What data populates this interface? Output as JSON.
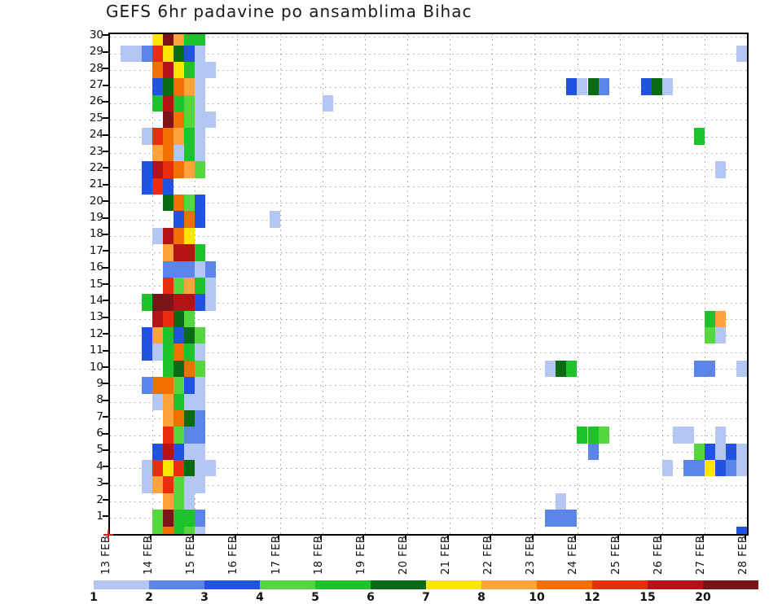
{
  "title": "GEFS 6hr padavine po ansamblima Bihac",
  "chart_data": {
    "type": "heatmap",
    "title": "GEFS 6hr padavine po ansamblima Bihac",
    "xlabel": "",
    "ylabel": "",
    "x_axis": {
      "day_labels": [
        "13 FEB",
        "14 FEB",
        "15 FEB",
        "16 FEB",
        "17 FEB",
        "18 FEB",
        "19 FEB",
        "20 FEB",
        "21 FEB",
        "22 FEB",
        "23 FEB",
        "24 FEB",
        "25 FEB",
        "26 FEB",
        "27 FEB",
        "28 FEB"
      ],
      "slots_per_day": 4,
      "slot_hours": 6
    },
    "y_axis": {
      "min_member": 1,
      "max_member": 30,
      "tick_labels": [
        "30",
        "29",
        "28",
        "27",
        "26",
        "25",
        "24",
        "23",
        "22",
        "21",
        "20",
        "19",
        "18",
        "17",
        "16",
        "15",
        "14",
        "13",
        "12",
        "11",
        "10",
        "9",
        "8",
        "7",
        "6",
        "5",
        "4",
        "3",
        "2",
        "1"
      ]
    },
    "legend": {
      "position": "bottom",
      "boundary_labels": [
        "1",
        "2",
        "3",
        "4",
        "5",
        "6",
        "7",
        "8",
        "10",
        "12",
        "15",
        "20"
      ],
      "colors": [
        "#b4c7f2",
        "#5c85ea",
        "#2152e0",
        "#55d83e",
        "#1ec32b",
        "#0b6b14",
        "#ffe600",
        "#ffa43c",
        "#f17100",
        "#e92e0d",
        "#b51218",
        "#7a1418"
      ]
    },
    "grid": true,
    "cells": [
      [
        30,
        4,
        7
      ],
      [
        30,
        5,
        12
      ],
      [
        30,
        6,
        8
      ],
      [
        30,
        7,
        5
      ],
      [
        30,
        8,
        5
      ],
      [
        29,
        1,
        1
      ],
      [
        29,
        2,
        1
      ],
      [
        29,
        3,
        2
      ],
      [
        29,
        4,
        10
      ],
      [
        29,
        5,
        7
      ],
      [
        29,
        6,
        6
      ],
      [
        29,
        7,
        3
      ],
      [
        29,
        8,
        1
      ],
      [
        29,
        59,
        1
      ],
      [
        28,
        4,
        9
      ],
      [
        28,
        5,
        11
      ],
      [
        28,
        6,
        7
      ],
      [
        28,
        7,
        5
      ],
      [
        28,
        8,
        1
      ],
      [
        28,
        9,
        1
      ],
      [
        27,
        4,
        3
      ],
      [
        27,
        5,
        6
      ],
      [
        27,
        6,
        9
      ],
      [
        27,
        7,
        8
      ],
      [
        27,
        8,
        1
      ],
      [
        27,
        43,
        3
      ],
      [
        27,
        44,
        1
      ],
      [
        27,
        45,
        6
      ],
      [
        27,
        46,
        2
      ],
      [
        27,
        50,
        3
      ],
      [
        27,
        51,
        6
      ],
      [
        27,
        52,
        1
      ],
      [
        26,
        4,
        5
      ],
      [
        26,
        5,
        11
      ],
      [
        26,
        6,
        5
      ],
      [
        26,
        7,
        4
      ],
      [
        26,
        8,
        1
      ],
      [
        26,
        20,
        1
      ],
      [
        25,
        5,
        12
      ],
      [
        25,
        6,
        9
      ],
      [
        25,
        7,
        4
      ],
      [
        25,
        8,
        1
      ],
      [
        25,
        9,
        1
      ],
      [
        24,
        3,
        1
      ],
      [
        24,
        4,
        10
      ],
      [
        24,
        5,
        9
      ],
      [
        24,
        6,
        8
      ],
      [
        24,
        7,
        5
      ],
      [
        24,
        8,
        1
      ],
      [
        24,
        55,
        5
      ],
      [
        23,
        4,
        8
      ],
      [
        23,
        5,
        9
      ],
      [
        23,
        6,
        1
      ],
      [
        23,
        7,
        5
      ],
      [
        23,
        8,
        1
      ],
      [
        22,
        3,
        3
      ],
      [
        22,
        4,
        11
      ],
      [
        22,
        5,
        10
      ],
      [
        22,
        6,
        9
      ],
      [
        22,
        7,
        8
      ],
      [
        22,
        8,
        4
      ],
      [
        22,
        57,
        1
      ],
      [
        21,
        3,
        3
      ],
      [
        21,
        4,
        10
      ],
      [
        21,
        5,
        3
      ],
      [
        20,
        5,
        6
      ],
      [
        20,
        6,
        9
      ],
      [
        20,
        7,
        4
      ],
      [
        20,
        8,
        3
      ],
      [
        19,
        6,
        3
      ],
      [
        19,
        7,
        9
      ],
      [
        19,
        8,
        3
      ],
      [
        19,
        15,
        1
      ],
      [
        18,
        4,
        1
      ],
      [
        18,
        5,
        11
      ],
      [
        18,
        6,
        9
      ],
      [
        18,
        7,
        7
      ],
      [
        17,
        5,
        8
      ],
      [
        17,
        6,
        11
      ],
      [
        17,
        7,
        11
      ],
      [
        17,
        8,
        5
      ],
      [
        16,
        5,
        2
      ],
      [
        16,
        6,
        2
      ],
      [
        16,
        7,
        2
      ],
      [
        16,
        8,
        1
      ],
      [
        16,
        9,
        2
      ],
      [
        15,
        5,
        10
      ],
      [
        15,
        6,
        4
      ],
      [
        15,
        7,
        8
      ],
      [
        15,
        8,
        5
      ],
      [
        15,
        9,
        1
      ],
      [
        14,
        3,
        5
      ],
      [
        14,
        4,
        12
      ],
      [
        14,
        5,
        12
      ],
      [
        14,
        6,
        11
      ],
      [
        14,
        7,
        11
      ],
      [
        14,
        8,
        3
      ],
      [
        14,
        9,
        1
      ],
      [
        13,
        4,
        11
      ],
      [
        13,
        5,
        10
      ],
      [
        13,
        6,
        6
      ],
      [
        13,
        7,
        4
      ],
      [
        13,
        56,
        5
      ],
      [
        13,
        57,
        8
      ],
      [
        12,
        3,
        3
      ],
      [
        12,
        4,
        8
      ],
      [
        12,
        5,
        5
      ],
      [
        12,
        6,
        3
      ],
      [
        12,
        7,
        6
      ],
      [
        12,
        8,
        4
      ],
      [
        12,
        56,
        4
      ],
      [
        12,
        57,
        1
      ],
      [
        11,
        3,
        3
      ],
      [
        11,
        4,
        1
      ],
      [
        11,
        5,
        5
      ],
      [
        11,
        6,
        9
      ],
      [
        11,
        7,
        5
      ],
      [
        11,
        8,
        1
      ],
      [
        10,
        5,
        5
      ],
      [
        10,
        6,
        6
      ],
      [
        10,
        7,
        9
      ],
      [
        10,
        8,
        4
      ],
      [
        10,
        41,
        1
      ],
      [
        10,
        42,
        6
      ],
      [
        10,
        43,
        5
      ],
      [
        10,
        55,
        2
      ],
      [
        10,
        56,
        2
      ],
      [
        10,
        59,
        1
      ],
      [
        10,
        60,
        3
      ],
      [
        9,
        3,
        2
      ],
      [
        9,
        4,
        9
      ],
      [
        9,
        5,
        9
      ],
      [
        9,
        6,
        4
      ],
      [
        9,
        7,
        3
      ],
      [
        9,
        8,
        1
      ],
      [
        8,
        4,
        1
      ],
      [
        8,
        5,
        8
      ],
      [
        8,
        6,
        5
      ],
      [
        8,
        7,
        1
      ],
      [
        8,
        8,
        1
      ],
      [
        7,
        5,
        8
      ],
      [
        7,
        6,
        9
      ],
      [
        7,
        7,
        6
      ],
      [
        7,
        8,
        2
      ],
      [
        6,
        5,
        10
      ],
      [
        6,
        6,
        4
      ],
      [
        6,
        7,
        2
      ],
      [
        6,
        8,
        2
      ],
      [
        6,
        44,
        5
      ],
      [
        6,
        45,
        5
      ],
      [
        6,
        46,
        4
      ],
      [
        6,
        53,
        1
      ],
      [
        6,
        54,
        1
      ],
      [
        6,
        57,
        1
      ],
      [
        5,
        4,
        3
      ],
      [
        5,
        5,
        11
      ],
      [
        5,
        6,
        3
      ],
      [
        5,
        7,
        1
      ],
      [
        5,
        8,
        1
      ],
      [
        5,
        45,
        2
      ],
      [
        5,
        55,
        4
      ],
      [
        5,
        56,
        3
      ],
      [
        5,
        57,
        1
      ],
      [
        5,
        58,
        3
      ],
      [
        5,
        59,
        1
      ],
      [
        4,
        3,
        1
      ],
      [
        4,
        4,
        10
      ],
      [
        4,
        5,
        7
      ],
      [
        4,
        6,
        10
      ],
      [
        4,
        7,
        6
      ],
      [
        4,
        8,
        1
      ],
      [
        4,
        9,
        1
      ],
      [
        4,
        52,
        1
      ],
      [
        4,
        54,
        2
      ],
      [
        4,
        55,
        2
      ],
      [
        4,
        56,
        7
      ],
      [
        4,
        57,
        3
      ],
      [
        4,
        58,
        2
      ],
      [
        4,
        59,
        1
      ],
      [
        3,
        3,
        1
      ],
      [
        3,
        4,
        8
      ],
      [
        3,
        5,
        10
      ],
      [
        3,
        6,
        4
      ],
      [
        3,
        7,
        1
      ],
      [
        3,
        8,
        1
      ],
      [
        2,
        5,
        8
      ],
      [
        2,
        6,
        4
      ],
      [
        2,
        7,
        1
      ],
      [
        2,
        42,
        1
      ],
      [
        1,
        4,
        4
      ],
      [
        1,
        5,
        12
      ],
      [
        1,
        6,
        5
      ],
      [
        1,
        7,
        5
      ],
      [
        1,
        8,
        2
      ],
      [
        1,
        41,
        2
      ],
      [
        1,
        42,
        2
      ],
      [
        1,
        43,
        2
      ],
      [
        0,
        4,
        4
      ],
      [
        0,
        5,
        9
      ],
      [
        0,
        6,
        5
      ],
      [
        0,
        7,
        4
      ],
      [
        0,
        8,
        1
      ],
      [
        0,
        59,
        3
      ],
      [
        0,
        60,
        3
      ]
    ]
  }
}
